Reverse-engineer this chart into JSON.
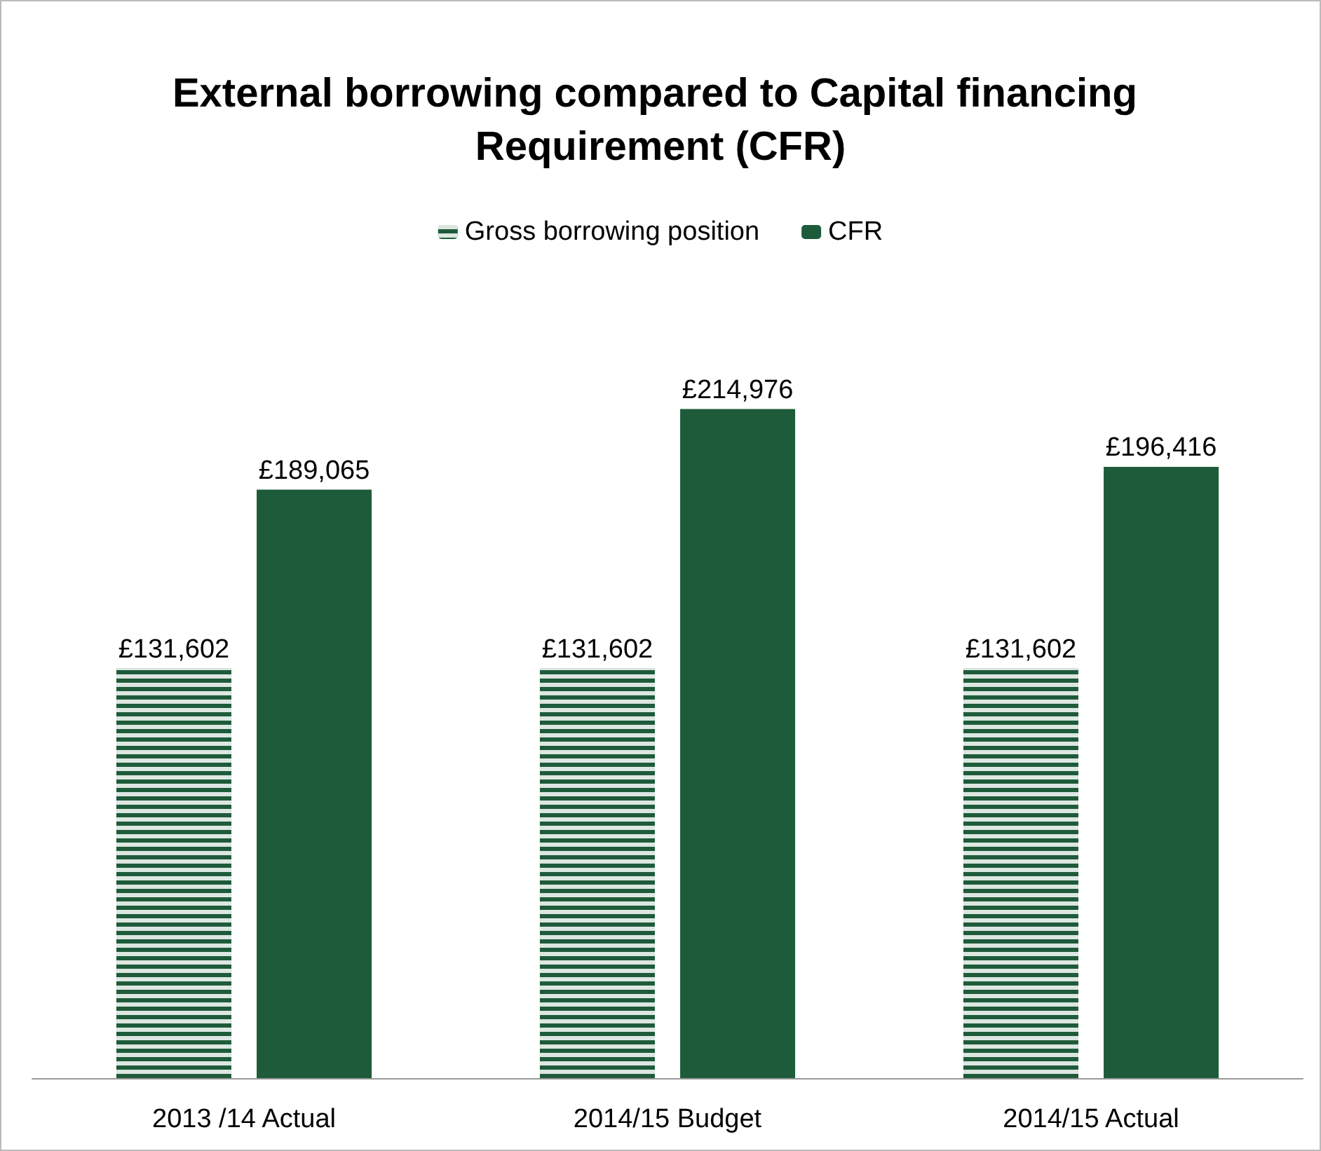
{
  "chart_data": {
    "type": "bar",
    "title": "External borrowing compared to Capital financing Requirement (CFR)",
    "categories": [
      "2013 /14 Actual",
      "2014/15 Budget",
      "2014/15 Actual"
    ],
    "series": [
      {
        "name": "Gross borrowing position",
        "color": "#1e5b3a",
        "values": [
          131602,
          131602,
          131602
        ],
        "value_labels": [
          "£131,602",
          "£131,602",
          "£131,602"
        ]
      },
      {
        "name": "CFR",
        "color": "#1e5b3a",
        "values": [
          189065,
          214976,
          196416
        ],
        "value_labels": [
          "£189,065",
          "£214,976",
          "£196,416"
        ]
      }
    ],
    "legend": "top"
  }
}
